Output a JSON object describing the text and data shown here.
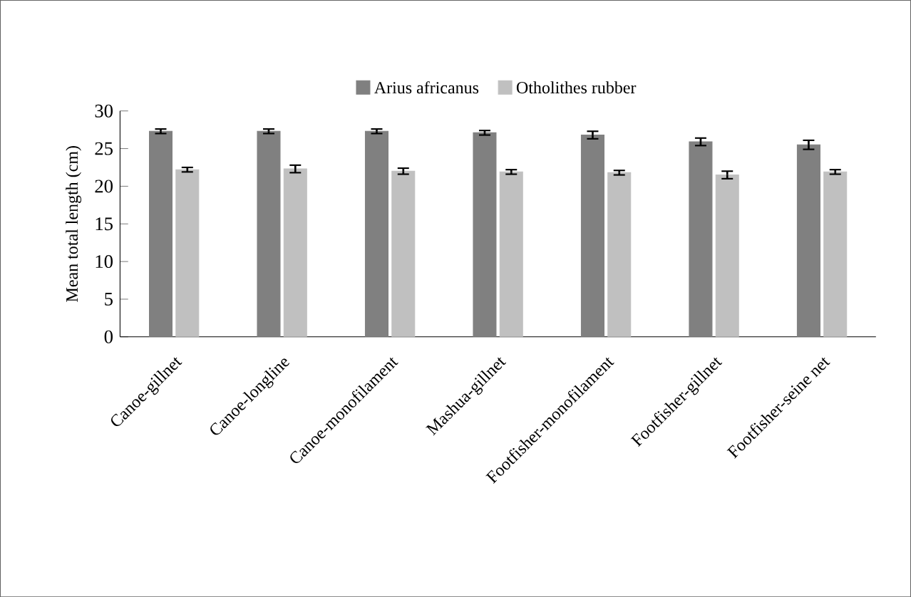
{
  "chart_data": {
    "type": "bar",
    "ylabel": "Mean total length (cm)",
    "categories": [
      "Canoe-gillnet",
      "Canoe-longline",
      "Canoe-monofilament",
      "Mashua-gillnet",
      "Footfisher-monofilament",
      "Footfisher-gillnet",
      "Footfisher-seine net"
    ],
    "series": [
      {
        "name": "Arius africanus",
        "color": "#808080",
        "values": [
          27.3,
          27.3,
          27.3,
          27.1,
          26.8,
          25.9,
          25.5
        ],
        "errors": [
          0.3,
          0.3,
          0.3,
          0.3,
          0.5,
          0.5,
          0.6
        ]
      },
      {
        "name": "Otholithes rubber",
        "color": "#c0c0c0",
        "values": [
          22.2,
          22.3,
          22.0,
          21.9,
          21.8,
          21.5,
          21.9
        ],
        "errors": [
          0.3,
          0.5,
          0.4,
          0.3,
          0.3,
          0.5,
          0.3
        ]
      }
    ],
    "ylim": [
      0,
      30
    ],
    "yticks": [
      0,
      5,
      10,
      15,
      20,
      25,
      30
    ],
    "grid": false,
    "legend": "top"
  }
}
